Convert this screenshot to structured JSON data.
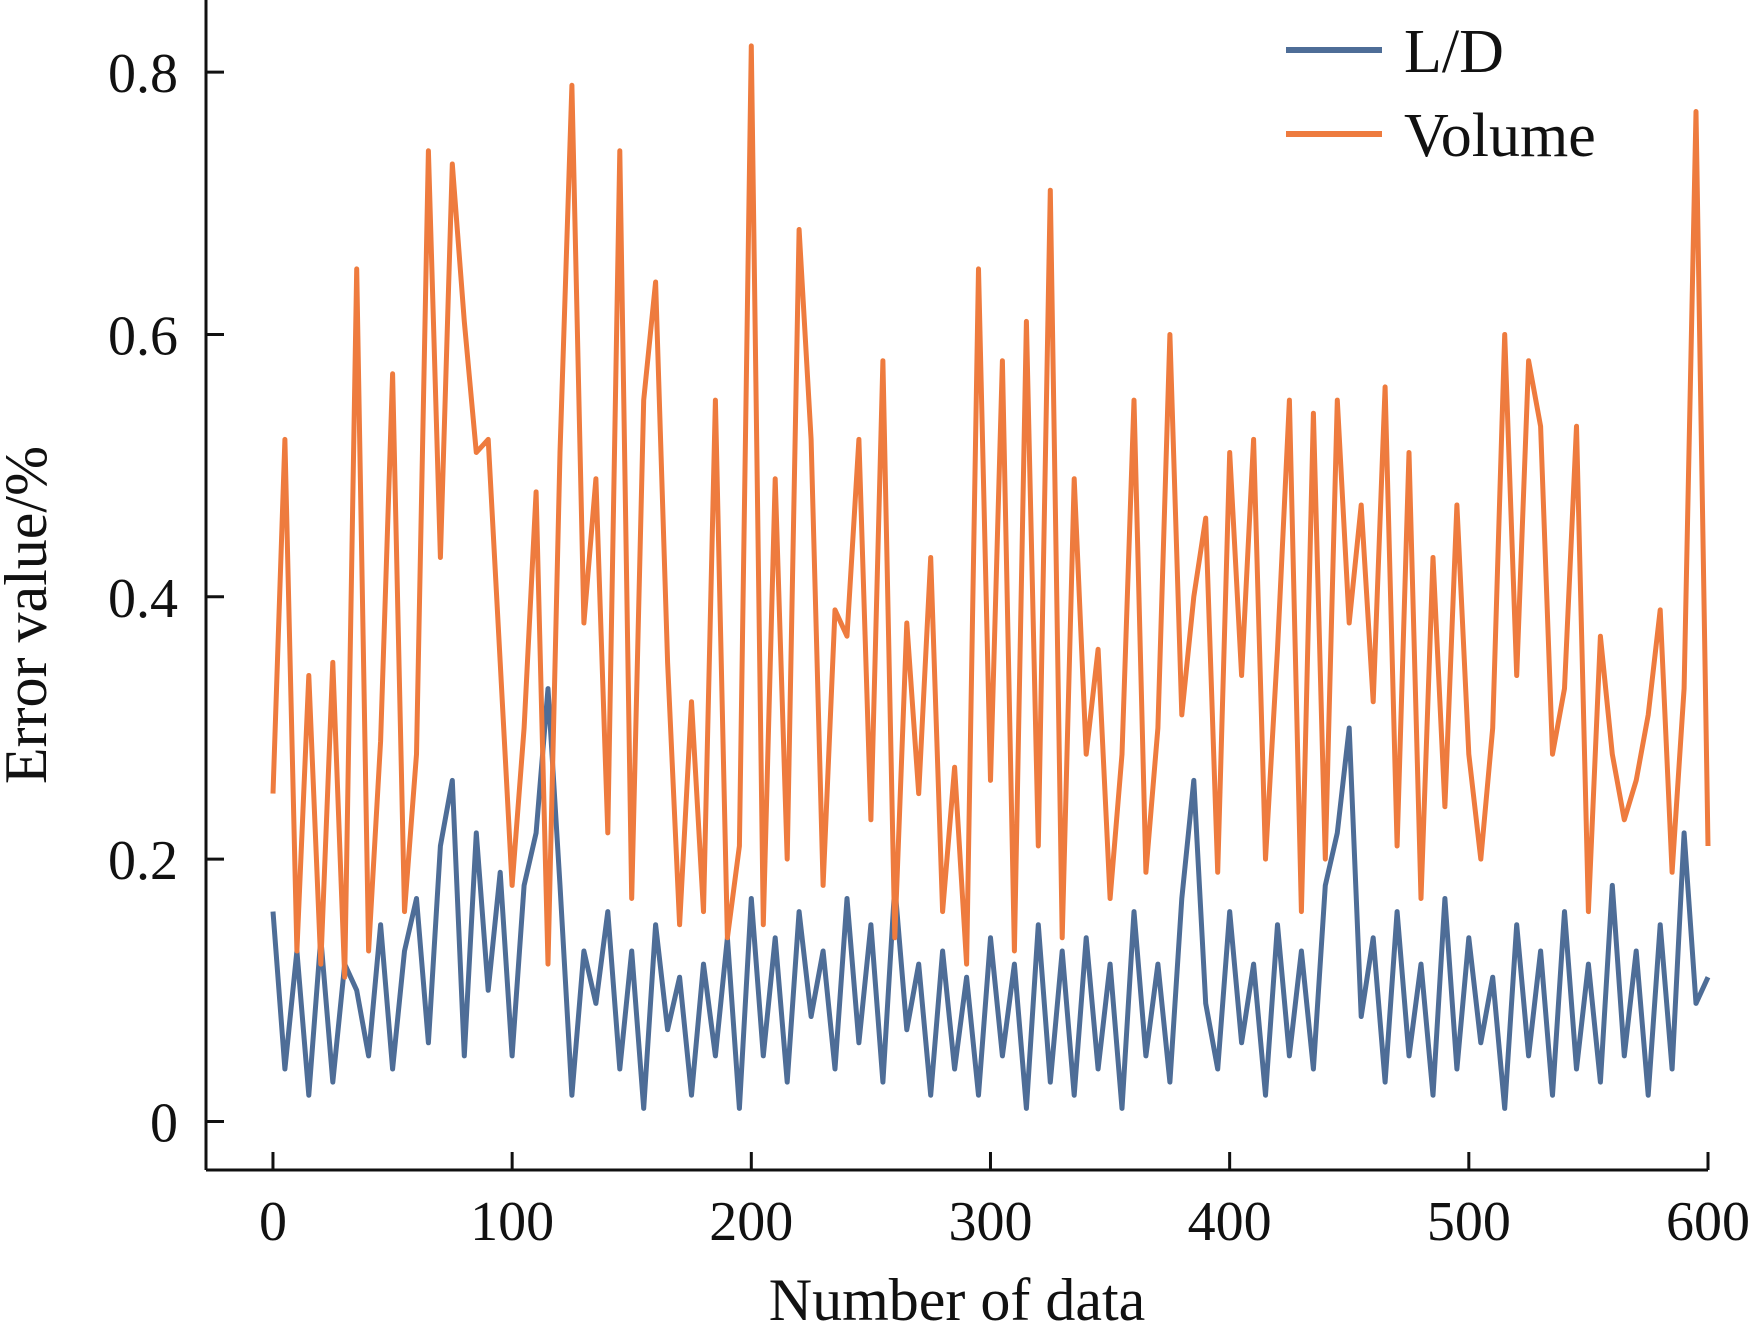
{
  "chart_data": {
    "type": "line",
    "title": "",
    "xlabel": "Number of data",
    "ylabel": "Error value/%",
    "xlim": [
      -28,
      600
    ],
    "ylim": [
      -0.037,
      0.855
    ],
    "xticks": [
      0,
      100,
      200,
      300,
      400,
      500,
      600
    ],
    "xtick_labels": [
      "0",
      "100",
      "200",
      "300",
      "400",
      "500",
      "600"
    ],
    "yticks": [
      0,
      0.2,
      0.4,
      0.6,
      0.8
    ],
    "ytick_labels": [
      "0",
      "0.2",
      "0.4",
      "0.6",
      "0.8"
    ],
    "grid": false,
    "legend_position": "top-right",
    "ticks_direction": "in",
    "series": [
      {
        "name": "L/D",
        "color": "#4e6d97",
        "x": [
          0,
          5,
          10,
          15,
          20,
          25,
          30,
          35,
          40,
          45,
          50,
          55,
          60,
          65,
          70,
          75,
          80,
          85,
          90,
          95,
          100,
          105,
          110,
          115,
          120,
          125,
          130,
          135,
          140,
          145,
          150,
          155,
          160,
          165,
          170,
          175,
          180,
          185,
          190,
          195,
          200,
          205,
          210,
          215,
          220,
          225,
          230,
          235,
          240,
          245,
          250,
          255,
          260,
          265,
          270,
          275,
          280,
          285,
          290,
          295,
          300,
          305,
          310,
          315,
          320,
          325,
          330,
          335,
          340,
          345,
          350,
          355,
          360,
          365,
          370,
          375,
          380,
          385,
          390,
          395,
          400,
          405,
          410,
          415,
          420,
          425,
          430,
          435,
          440,
          445,
          450,
          455,
          460,
          465,
          470,
          475,
          480,
          485,
          490,
          495,
          500,
          505,
          510,
          515,
          520,
          525,
          530,
          535,
          540,
          545,
          550,
          555,
          560,
          565,
          570,
          575,
          580,
          585,
          590,
          595,
          600
        ],
        "values": [
          0.16,
          0.04,
          0.13,
          0.02,
          0.14,
          0.03,
          0.12,
          0.1,
          0.05,
          0.15,
          0.04,
          0.13,
          0.17,
          0.06,
          0.21,
          0.26,
          0.05,
          0.22,
          0.1,
          0.19,
          0.05,
          0.18,
          0.22,
          0.33,
          0.18,
          0.02,
          0.13,
          0.09,
          0.16,
          0.04,
          0.13,
          0.01,
          0.15,
          0.07,
          0.11,
          0.02,
          0.12,
          0.05,
          0.14,
          0.01,
          0.17,
          0.05,
          0.14,
          0.03,
          0.16,
          0.08,
          0.13,
          0.04,
          0.17,
          0.06,
          0.15,
          0.03,
          0.18,
          0.07,
          0.12,
          0.02,
          0.13,
          0.04,
          0.11,
          0.02,
          0.14,
          0.05,
          0.12,
          0.01,
          0.15,
          0.03,
          0.13,
          0.02,
          0.14,
          0.04,
          0.12,
          0.01,
          0.16,
          0.05,
          0.12,
          0.03,
          0.17,
          0.26,
          0.09,
          0.04,
          0.16,
          0.06,
          0.12,
          0.02,
          0.15,
          0.05,
          0.13,
          0.04,
          0.18,
          0.22,
          0.3,
          0.08,
          0.14,
          0.03,
          0.16,
          0.05,
          0.12,
          0.02,
          0.17,
          0.04,
          0.14,
          0.06,
          0.11,
          0.01,
          0.15,
          0.05,
          0.13,
          0.02,
          0.16,
          0.04,
          0.12,
          0.03,
          0.18,
          0.05,
          0.13,
          0.02,
          0.15,
          0.04,
          0.22,
          0.09,
          0.11
        ]
      },
      {
        "name": "Volume",
        "color": "#ee7b3e",
        "x": [
          0,
          5,
          10,
          15,
          20,
          25,
          30,
          35,
          40,
          45,
          50,
          55,
          60,
          65,
          70,
          75,
          80,
          85,
          90,
          95,
          100,
          105,
          110,
          115,
          120,
          125,
          130,
          135,
          140,
          145,
          150,
          155,
          160,
          165,
          170,
          175,
          180,
          185,
          190,
          195,
          200,
          205,
          210,
          215,
          220,
          225,
          230,
          235,
          240,
          245,
          250,
          255,
          260,
          265,
          270,
          275,
          280,
          285,
          290,
          295,
          300,
          305,
          310,
          315,
          320,
          325,
          330,
          335,
          340,
          345,
          350,
          355,
          360,
          365,
          370,
          375,
          380,
          385,
          390,
          395,
          400,
          405,
          410,
          415,
          420,
          425,
          430,
          435,
          440,
          445,
          450,
          455,
          460,
          465,
          470,
          475,
          480,
          485,
          490,
          495,
          500,
          505,
          510,
          515,
          520,
          525,
          530,
          535,
          540,
          545,
          550,
          555,
          560,
          565,
          570,
          575,
          580,
          585,
          590,
          595,
          600
        ],
        "values": [
          0.25,
          0.52,
          0.13,
          0.34,
          0.12,
          0.35,
          0.11,
          0.65,
          0.13,
          0.29,
          0.57,
          0.16,
          0.28,
          0.74,
          0.43,
          0.73,
          0.61,
          0.51,
          0.52,
          0.35,
          0.18,
          0.3,
          0.48,
          0.12,
          0.51,
          0.79,
          0.38,
          0.49,
          0.22,
          0.74,
          0.17,
          0.55,
          0.64,
          0.35,
          0.15,
          0.32,
          0.16,
          0.55,
          0.14,
          0.21,
          0.82,
          0.15,
          0.49,
          0.2,
          0.68,
          0.52,
          0.18,
          0.39,
          0.37,
          0.52,
          0.23,
          0.58,
          0.14,
          0.38,
          0.25,
          0.43,
          0.16,
          0.27,
          0.12,
          0.65,
          0.26,
          0.58,
          0.13,
          0.61,
          0.21,
          0.71,
          0.14,
          0.49,
          0.28,
          0.36,
          0.17,
          0.28,
          0.55,
          0.19,
          0.3,
          0.6,
          0.31,
          0.4,
          0.46,
          0.19,
          0.51,
          0.34,
          0.52,
          0.2,
          0.36,
          0.55,
          0.16,
          0.54,
          0.2,
          0.55,
          0.38,
          0.47,
          0.32,
          0.56,
          0.21,
          0.51,
          0.17,
          0.43,
          0.24,
          0.47,
          0.28,
          0.2,
          0.3,
          0.6,
          0.34,
          0.58,
          0.53,
          0.28,
          0.33,
          0.53,
          0.16,
          0.37,
          0.28,
          0.23,
          0.26,
          0.31,
          0.39,
          0.19,
          0.33,
          0.77,
          0.21
        ]
      }
    ]
  }
}
